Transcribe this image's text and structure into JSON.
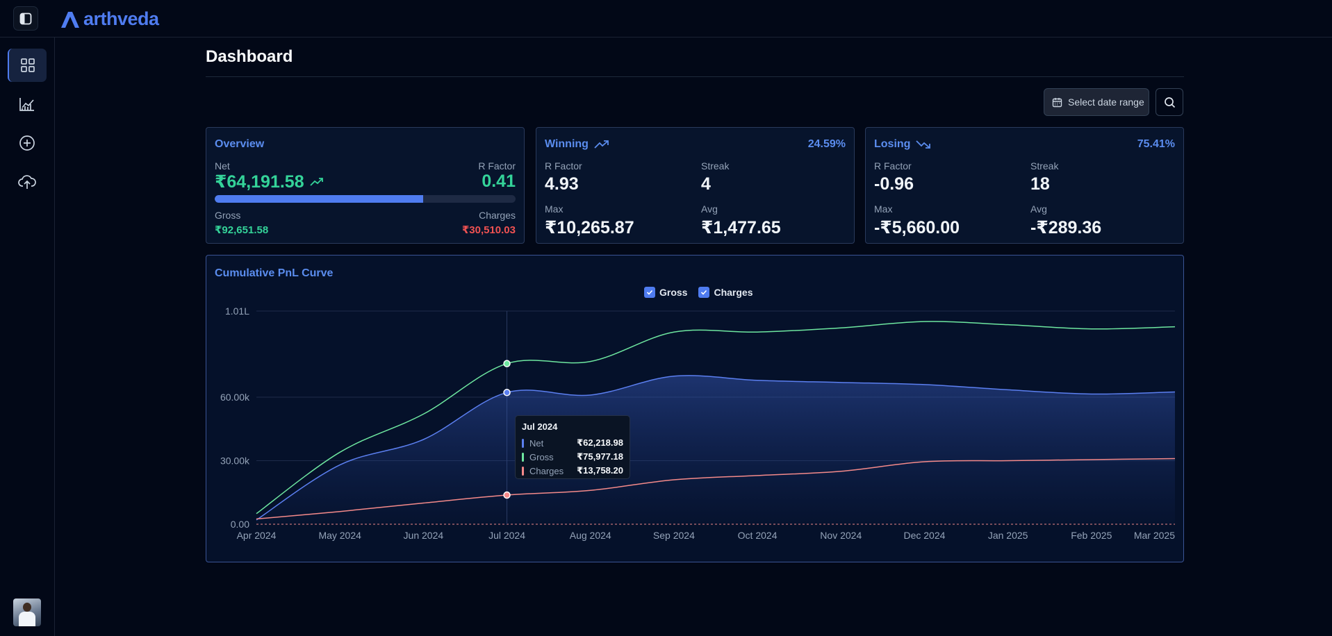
{
  "app": {
    "name": "arthveda"
  },
  "page": {
    "title": "Dashboard"
  },
  "toolbar": {
    "date_range_label": "Select date range"
  },
  "colors": {
    "accent": "#4f7cf0",
    "net": "#5b7ff0",
    "gross": "#6ee7a0",
    "charges": "#f58a8a",
    "positive": "#34d399",
    "negative": "#f05252"
  },
  "sidebar": {
    "toggle_icon": "sidebar-toggle-icon",
    "items": [
      {
        "name": "dashboard",
        "icon": "grid-icon",
        "active": true
      },
      {
        "name": "analytics",
        "icon": "chart-line-icon",
        "active": false
      },
      {
        "name": "add-trade",
        "icon": "plus-circle-icon",
        "active": false
      },
      {
        "name": "upload",
        "icon": "cloud-upload-icon",
        "active": false
      }
    ]
  },
  "overview": {
    "title": "Overview",
    "net_label": "Net",
    "net_value": "₹64,191.58",
    "r_factor_label": "R Factor",
    "r_factor_value": "0.41",
    "progress": 0.6929,
    "gross_label": "Gross",
    "gross_value": "₹92,651.58",
    "charges_label": "Charges",
    "charges_value": "₹30,510.03"
  },
  "winning": {
    "title": "Winning",
    "percent": "24.59%",
    "r_factor_label": "R Factor",
    "r_factor_value": "4.93",
    "streak_label": "Streak",
    "streak_value": "4",
    "max_label": "Max",
    "max_value": "₹10,265.87",
    "avg_label": "Avg",
    "avg_value": "₹1,477.65"
  },
  "losing": {
    "title": "Losing",
    "percent": "75.41%",
    "r_factor_label": "R Factor",
    "r_factor_value": "-0.96",
    "streak_label": "Streak",
    "streak_value": "18",
    "max_label": "Max",
    "max_value": "-₹5,660.00",
    "avg_label": "Avg",
    "avg_value": "-₹289.36"
  },
  "chart": {
    "title": "Cumulative PnL Curve",
    "legend": [
      {
        "label": "Gross",
        "checked": true
      },
      {
        "label": "Charges",
        "checked": true
      }
    ],
    "tooltip": {
      "title": "Jul 2024",
      "rows": [
        {
          "name": "Net",
          "value": "₹62,218.98"
        },
        {
          "name": "Gross",
          "value": "₹75,977.18"
        },
        {
          "name": "Charges",
          "value": "₹13,758.20"
        }
      ]
    }
  },
  "chart_data": {
    "type": "area",
    "title": "Cumulative PnL Curve",
    "categories": [
      "Apr 2024",
      "May 2024",
      "Jun 2024",
      "Jul 2024",
      "Aug 2024",
      "Sep 2024",
      "Oct 2024",
      "Nov 2024",
      "Dec 2024",
      "Jan 2025",
      "Feb 2025",
      "Mar 2025"
    ],
    "y_ticks": [
      "0.00",
      "30.00k",
      "60.00k",
      "1.01L"
    ],
    "ylim": [
      0,
      101000
    ],
    "grid": true,
    "active_index": 3,
    "series": [
      {
        "name": "Net",
        "values": [
          2000,
          28000,
          40000,
          62218.98,
          61000,
          70000,
          68000,
          67000,
          66000,
          63500,
          61500,
          62500
        ]
      },
      {
        "name": "Gross",
        "values": [
          5000,
          34000,
          52000,
          75977.18,
          77000,
          91000,
          91000,
          93000,
          96000,
          94500,
          92500,
          93500
        ]
      },
      {
        "name": "Charges",
        "values": [
          2500,
          6000,
          10000,
          13758.2,
          16000,
          21000,
          23000,
          25000,
          29500,
          30000,
          30500,
          31000
        ]
      }
    ]
  }
}
